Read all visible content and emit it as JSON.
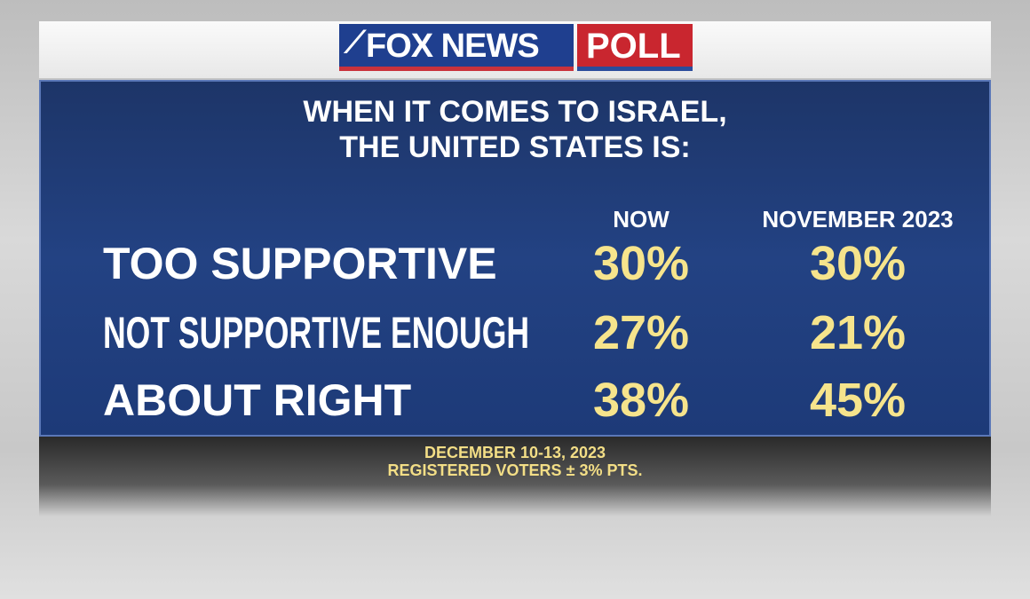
{
  "logo": {
    "brand": "FOX NEWS",
    "suffix": "POLL"
  },
  "chart_data": {
    "type": "table",
    "title": "WHEN IT COMES TO ISRAEL, THE UNITED STATES IS:",
    "title_lines": [
      "WHEN IT COMES TO ISRAEL,",
      "THE UNITED STATES IS:"
    ],
    "columns": [
      "NOW",
      "NOVEMBER 2023"
    ],
    "categories": [
      "TOO SUPPORTIVE",
      "NOT SUPPORTIVE ENOUGH",
      "ABOUT RIGHT"
    ],
    "series": [
      {
        "name": "NOW",
        "values": [
          30,
          27,
          38
        ],
        "labels": [
          "30%",
          "27%",
          "38%"
        ]
      },
      {
        "name": "NOVEMBER 2023",
        "values": [
          30,
          21,
          45
        ],
        "labels": [
          "30%",
          "21%",
          "45%"
        ]
      }
    ],
    "unit": "%"
  },
  "footer": {
    "dates": "DECEMBER 10-13, 2023",
    "sample": "REGISTERED VOTERS ± 3% PTS."
  },
  "colors": {
    "panel": "#234283",
    "value": "#f6e48c",
    "fox": "#1f3f8f",
    "poll": "#c9262f"
  }
}
